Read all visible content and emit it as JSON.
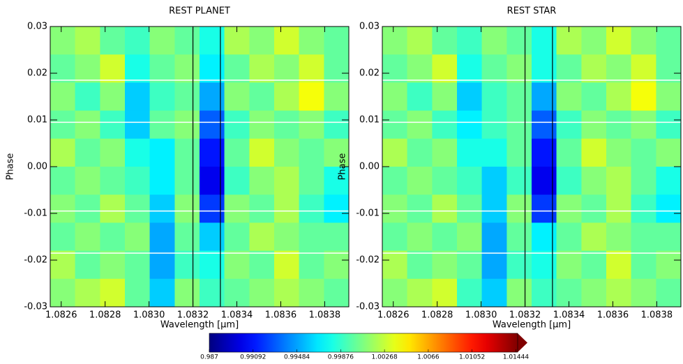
{
  "chart_data": [
    {
      "type": "heatmap",
      "title": "REST PLANET",
      "xlabel": "Wavelength [μm]",
      "ylabel": "Phase",
      "xlim": [
        1.08255,
        1.08391
      ],
      "ylim": [
        -0.03,
        0.03
      ],
      "xticks": [
        1.0826,
        1.0828,
        {
          "value": 1.083,
          "label": "1.0830"
        },
        1.0832,
        1.0834,
        1.0836,
        1.0838
      ],
      "yticks": [
        -0.03,
        -0.02,
        -0.01,
        {
          "value": 0,
          "label": "0.00"
        },
        0.01,
        0.02,
        0.03
      ],
      "xbins": [
        1.08255,
        1.082663,
        1.082777,
        1.08289,
        1.083003,
        1.083117,
        1.08323,
        1.083343,
        1.083457,
        1.08357,
        1.083683,
        1.083797,
        1.08391
      ],
      "ybins": [
        0.03,
        0.024,
        0.018,
        0.012,
        0.006,
        0,
        -0.006,
        -0.012,
        -0.018,
        -0.024,
        -0.03
      ],
      "z": [
        [
          1.001,
          1.002,
          1.0,
          0.999,
          1.001,
          1.0,
          0.998,
          1.002,
          1.001,
          1.003,
          1.001,
          1.0
        ],
        [
          1.0,
          1.001,
          1.003,
          0.998,
          1.0,
          1.001,
          0.997,
          1.0,
          1.002,
          1.001,
          1.003,
          1.0
        ],
        [
          1.001,
          0.999,
          1.001,
          0.996,
          0.999,
          1.0,
          0.995,
          1.001,
          1.0,
          1.002,
          1.004,
          1.001
        ],
        [
          1.0,
          1.001,
          0.999,
          0.996,
          1.0,
          1.001,
          0.993,
          0.999,
          1.001,
          1.0,
          1.001,
          0.999
        ],
        [
          1.002,
          1.0,
          1.001,
          0.998,
          0.997,
          1.0,
          0.991,
          1.0,
          1.003,
          1.001,
          1.0,
          1.001
        ],
        [
          1.0,
          1.001,
          1.0,
          0.999,
          0.997,
          1.0,
          0.99,
          0.999,
          1.001,
          1.002,
          1.0,
          0.998
        ],
        [
          1.001,
          1.0,
          1.002,
          1.0,
          0.996,
          1.001,
          0.992,
          1.001,
          1.0,
          1.002,
          0.999,
          0.997
        ],
        [
          1.0,
          1.001,
          1.0,
          1.001,
          0.995,
          1.0,
          0.996,
          1.0,
          1.002,
          1.001,
          1.0,
          1.0
        ],
        [
          1.002,
          1.0,
          1.001,
          1.0,
          0.995,
          0.999,
          0.998,
          1.001,
          1.0,
          1.003,
          1.0,
          1.001
        ],
        [
          1.001,
          1.002,
          1.003,
          1.0,
          0.996,
          1.001,
          0.999,
          1.0,
          1.001,
          1.002,
          1.001,
          1.0
        ]
      ],
      "vlines": [
        1.0832,
        1.083325
      ],
      "hlines": [
        0.0185,
        0.0095,
        -0.0095,
        -0.0185
      ]
    },
    {
      "type": "heatmap",
      "title": "REST STAR",
      "xlabel": "Wavelength [μm]",
      "ylabel": "Phase",
      "xlim": [
        1.08255,
        1.08391
      ],
      "ylim": [
        -0.03,
        0.03
      ],
      "xticks": [
        1.0826,
        1.0828,
        {
          "value": 1.083,
          "label": "1.0830"
        },
        1.0832,
        1.0834,
        1.0836,
        1.0838
      ],
      "yticks": [
        -0.03,
        -0.02,
        -0.01,
        {
          "value": 0,
          "label": "0.00"
        },
        0.01,
        0.02,
        0.03
      ],
      "xbins": [
        1.08255,
        1.082663,
        1.082777,
        1.08289,
        1.083003,
        1.083117,
        1.08323,
        1.083343,
        1.083457,
        1.08357,
        1.083683,
        1.083797,
        1.08391
      ],
      "ybins": [
        0.03,
        0.024,
        0.018,
        0.012,
        0.006,
        0,
        -0.006,
        -0.012,
        -0.018,
        -0.024,
        -0.03
      ],
      "z": [
        [
          1.001,
          1.002,
          1.0,
          0.999,
          1.001,
          1.0,
          0.998,
          1.002,
          1.001,
          1.003,
          1.001,
          1.0
        ],
        [
          1.0,
          1.001,
          1.003,
          0.998,
          1.0,
          1.001,
          0.998,
          1.0,
          1.002,
          1.001,
          1.003,
          1.0
        ],
        [
          1.001,
          0.999,
          1.001,
          0.996,
          0.999,
          1.0,
          0.995,
          1.001,
          1.0,
          1.002,
          1.004,
          1.001
        ],
        [
          1.0,
          1.001,
          0.999,
          0.997,
          0.999,
          1.0,
          0.993,
          0.999,
          1.001,
          1.0,
          1.001,
          0.999
        ],
        [
          1.002,
          1.0,
          1.001,
          0.998,
          0.998,
          1.0,
          0.991,
          1.0,
          1.003,
          1.001,
          1.0,
          1.001
        ],
        [
          1.0,
          1.001,
          1.0,
          0.999,
          0.996,
          0.999,
          0.99,
          0.999,
          1.001,
          1.002,
          1.0,
          0.998
        ],
        [
          1.001,
          1.0,
          1.002,
          1.0,
          0.996,
          1.001,
          0.992,
          1.001,
          1.0,
          1.002,
          0.999,
          0.997
        ],
        [
          1.0,
          1.001,
          1.0,
          1.001,
          0.995,
          1.0,
          0.997,
          1.0,
          1.002,
          1.001,
          1.0,
          1.0
        ],
        [
          1.002,
          1.0,
          1.001,
          1.0,
          0.995,
          0.999,
          0.998,
          1.001,
          1.0,
          1.003,
          1.0,
          1.001
        ],
        [
          1.001,
          1.002,
          1.003,
          0.999,
          0.996,
          1.001,
          0.999,
          1.0,
          1.001,
          1.002,
          1.001,
          1.0
        ]
      ],
      "vlines": [
        1.0832,
        1.083325
      ],
      "hlines": [
        0.0185,
        0.0095,
        -0.0095,
        -0.0185
      ]
    }
  ],
  "colorbar": {
    "lim": [
      0.987,
      1.0146
    ],
    "ticks": [
      0.987,
      0.99092,
      0.99484,
      0.99876,
      1.00268,
      1.0066,
      1.01052,
      1.01444
    ]
  }
}
